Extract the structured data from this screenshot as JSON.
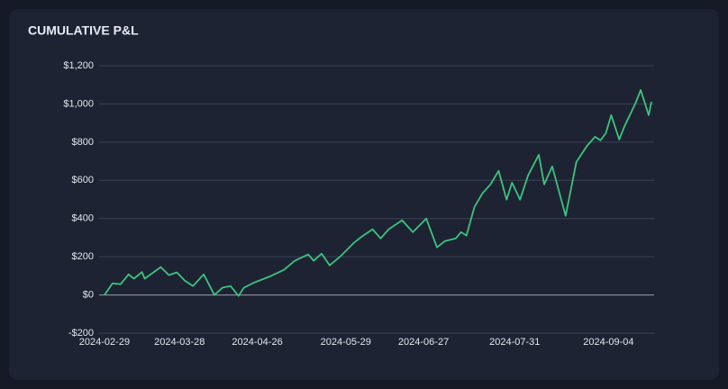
{
  "chart_data": {
    "type": "line",
    "title": "CUMULATIVE P&L",
    "x": [
      "2024-02-29",
      "2024-03-03",
      "2024-03-06",
      "2024-03-09",
      "2024-03-11",
      "2024-03-14",
      "2024-03-15",
      "2024-03-21",
      "2024-03-24",
      "2024-03-27",
      "2024-03-30",
      "2024-04-02",
      "2024-04-06",
      "2024-04-10",
      "2024-04-13",
      "2024-04-16",
      "2024-04-19",
      "2024-04-21",
      "2024-04-25",
      "2024-05-01",
      "2024-05-06",
      "2024-05-10",
      "2024-05-15",
      "2024-05-17",
      "2024-05-20",
      "2024-05-23",
      "2024-05-27",
      "2024-06-01",
      "2024-06-04",
      "2024-06-08",
      "2024-06-11",
      "2024-06-14",
      "2024-06-19",
      "2024-06-23",
      "2024-06-28",
      "2024-07-02",
      "2024-07-05",
      "2024-07-09",
      "2024-07-11",
      "2024-07-13",
      "2024-07-16",
      "2024-07-19",
      "2024-07-22",
      "2024-07-25",
      "2024-07-28",
      "2024-07-30",
      "2024-08-02",
      "2024-08-05",
      "2024-08-09",
      "2024-08-11",
      "2024-08-14",
      "2024-08-19",
      "2024-08-23",
      "2024-08-27",
      "2024-08-30",
      "2024-09-01",
      "2024-09-03",
      "2024-09-05",
      "2024-09-08",
      "2024-09-10",
      "2024-09-14",
      "2024-09-16",
      "2024-09-19",
      "2024-09-20"
    ],
    "series": [
      {
        "color": "#3cc47c",
        "values": [
          0,
          61,
          56,
          108,
          85,
          120,
          85,
          146,
          104,
          118,
          75,
          47,
          108,
          0,
          38,
          47,
          -5,
          38,
          66,
          99,
          132,
          179,
          212,
          179,
          216,
          155,
          202,
          273,
          306,
          344,
          296,
          344,
          391,
          329,
          400,
          249,
          282,
          296,
          329,
          311,
          461,
          532,
          579,
          650,
          499,
          588,
          499,
          626,
          734,
          579,
          673,
          414,
          696,
          781,
          828,
          809,
          847,
          941,
          814,
          885,
          1002,
          1073,
          941,
          1012
        ]
      }
    ],
    "xlim": [
      "2024-02-27",
      "2024-09-21"
    ],
    "xticks": [
      "2024-02-29",
      "2024-03-28",
      "2024-04-26",
      "2024-05-29",
      "2024-06-27",
      "2024-07-31",
      "2024-09-04"
    ],
    "ylim": [
      -200,
      1200
    ],
    "yticks": [
      {
        "value": -200,
        "label": "-$200"
      },
      {
        "value": 0,
        "label": "$0"
      },
      {
        "value": 200,
        "label": "$200"
      },
      {
        "value": 400,
        "label": "$400"
      },
      {
        "value": 600,
        "label": "$600"
      },
      {
        "value": 800,
        "label": "$800"
      },
      {
        "value": 1000,
        "label": "$1,000"
      },
      {
        "value": 1200,
        "label": "$1,200"
      }
    ],
    "grid": true
  }
}
